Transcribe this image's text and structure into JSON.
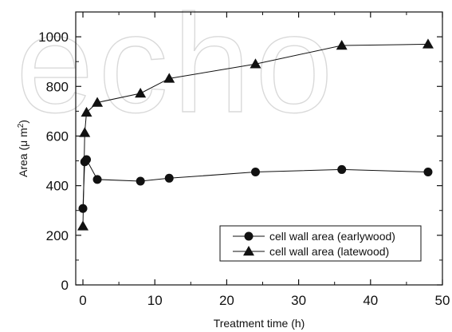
{
  "watermark": "echo",
  "chart_data": {
    "type": "line",
    "xlabel": "Treatment time (h)",
    "ylabel": "Area (μ m²)",
    "xlim": [
      -1,
      50
    ],
    "ylim": [
      0,
      1100
    ],
    "xticks": [
      0,
      10,
      20,
      30,
      40,
      50
    ],
    "yticks": [
      0,
      200,
      400,
      600,
      800,
      1000
    ],
    "grid": false,
    "legend_position": "bottom-right",
    "series": [
      {
        "name": "cell wall area (earlywood)",
        "marker": "circle",
        "x": [
          0,
          0.25,
          0.5,
          2,
          8,
          12,
          24,
          36,
          48
        ],
        "y": [
          308,
          496,
          505,
          425,
          418,
          430,
          455,
          465,
          455
        ]
      },
      {
        "name": "cell wall area (latewood)",
        "marker": "triangle",
        "x": [
          0,
          0.25,
          0.5,
          2,
          8,
          12,
          24,
          36,
          48
        ],
        "y": [
          237,
          613,
          695,
          735,
          772,
          832,
          890,
          965,
          970
        ]
      }
    ]
  }
}
